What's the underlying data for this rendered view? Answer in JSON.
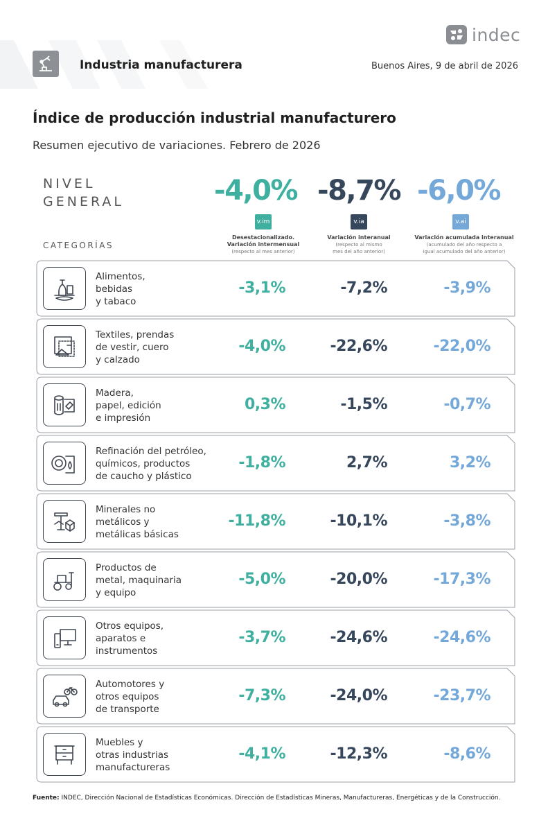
{
  "header": {
    "logo_text": "indec",
    "section_title": "Industria manufacturera",
    "date": "Buenos Aires, 9 de abril de 2026"
  },
  "title": "Índice de producción industrial manufacturero",
  "subtitle": "Resumen ejecutivo de variaciones. Febrero de 2026",
  "nivel_general": {
    "label_line1": "NIVEL",
    "label_line2": "GENERAL",
    "vim": "-4,0%",
    "via": "-8,7%",
    "vai": "-6,0%"
  },
  "columns": [
    {
      "badge": "v.im",
      "title": "Desestacionalizado.",
      "title2": "Variación intermensual",
      "note": "(respecto al mes anterior)",
      "note2": ""
    },
    {
      "badge": "v.ia",
      "title": "Variación interanual",
      "title2": "",
      "note": "(respecto al mismo",
      "note2": "mes del año anterior)"
    },
    {
      "badge": "v.ai",
      "title": "Variación acumulada interanual",
      "title2": "",
      "note": "(acumulado del año respecto a",
      "note2": "igual acumulado del año anterior)"
    }
  ],
  "categories_header": "CATEGORÍAS",
  "colors": {
    "vim": "#3fb0a0",
    "via": "#37475b",
    "vai": "#74a8d9"
  },
  "rows": [
    {
      "icon": "food-icon",
      "l1": "Alimentos,",
      "l2": "bebidas",
      "l3": "y tabaco",
      "vim": "-3,1%",
      "via": "-7,2%",
      "vai": "-3,9%"
    },
    {
      "icon": "textile-icon",
      "l1": "Textiles, prendas",
      "l2": "de vestir, cuero",
      "l3": "y calzado",
      "vim": "-4,0%",
      "via": "-22,6%",
      "vai": "-22,0%"
    },
    {
      "icon": "wood-paper-icon",
      "l1": "Madera,",
      "l2": "papel, edición",
      "l3": "e impresión",
      "vim": "0,3%",
      "via": "-1,5%",
      "vai": "-0,7%"
    },
    {
      "icon": "petroleum-tire-icon",
      "l1": "Refinación del petróleo,",
      "l2": "químicos, productos",
      "l3": "de caucho y plástico",
      "vim": "-1,8%",
      "via": "2,7%",
      "vai": "3,2%"
    },
    {
      "icon": "minerals-icon",
      "l1": "Minerales no",
      "l2": "metálicos y",
      "l3": "metálicas básicas",
      "vim": "-11,8%",
      "via": "-10,1%",
      "vai": "-3,8%"
    },
    {
      "icon": "tractor-icon",
      "l1": "Productos de",
      "l2": "metal, maquinaria",
      "l3": "y equipo",
      "vim": "-5,0%",
      "via": "-20,0%",
      "vai": "-17,3%"
    },
    {
      "icon": "devices-icon",
      "l1": "Otros equipos,",
      "l2": "aparatos e",
      "l3": "instrumentos",
      "vim": "-3,7%",
      "via": "-24,6%",
      "vai": "-24,6%"
    },
    {
      "icon": "car-bike-icon",
      "l1": "Automotores y",
      "l2": "otros equipos",
      "l3": "de transporte",
      "vim": "-7,3%",
      "via": "-24,0%",
      "vai": "-23,7%"
    },
    {
      "icon": "furniture-icon",
      "l1": "Muebles y",
      "l2": "otras industrias",
      "l3": "manufactureras",
      "vim": "-4,1%",
      "via": "-12,3%",
      "vai": "-8,6%"
    }
  ],
  "footer": {
    "label": "Fuente:",
    "text": "INDEC, Dirección Nacional de Estadísticas Económicas. Dirección de Estadísticas Mineras, Manufactureras, Energéticas y de la Construcción."
  }
}
